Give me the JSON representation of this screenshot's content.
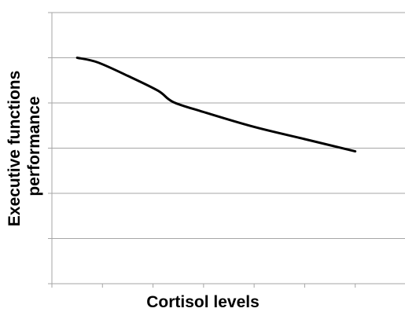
{
  "chart_data": {
    "type": "line",
    "title": "",
    "xlabel": "Cortisol levels",
    "ylabel_lines": [
      "Executive functions",
      "performance"
    ],
    "xlim": [
      0,
      7
    ],
    "ylim": [
      0,
      6
    ],
    "y_gridlines": [
      1,
      2,
      3,
      4,
      5,
      6
    ],
    "x_ticks": [
      1,
      2,
      3,
      4,
      5,
      6
    ],
    "grid": true,
    "legend": "none",
    "series": [
      {
        "x": [
          0.5,
          0.9,
          1.5,
          2.1,
          2.4,
          3.0,
          4.0,
          5.0,
          6.0
        ],
        "y": [
          5.0,
          4.9,
          4.6,
          4.27,
          4.02,
          3.8,
          3.47,
          3.2,
          2.93
        ]
      }
    ],
    "colors": {
      "line": "#000000",
      "grid": "#a6a6a6",
      "axis": "#a6a6a6"
    }
  }
}
